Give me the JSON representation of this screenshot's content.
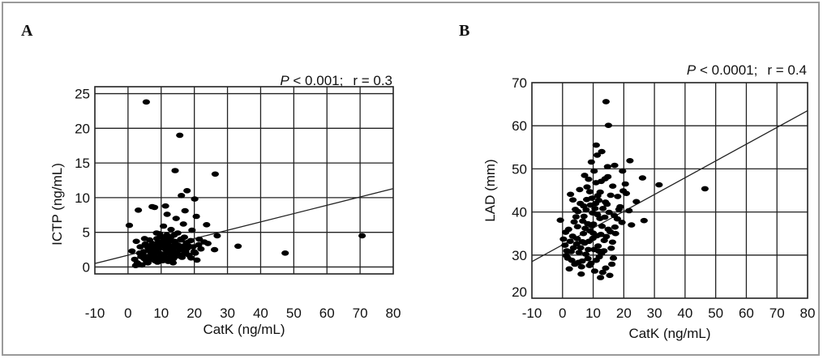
{
  "chart_data": [
    {
      "type": "scatter",
      "panel_label": "A",
      "stat_p_symbol": "P",
      "stat_p_value": " < 0.001;",
      "stat_r": "r = 0.3",
      "xlabel": "CatK (ng/mL)",
      "ylabel": "ICTP (ng/mL)",
      "xlim": [
        -10,
        80
      ],
      "ylim": [
        -1,
        26
      ],
      "xticks": [
        -10,
        0,
        10,
        20,
        30,
        40,
        50,
        60,
        70,
        80
      ],
      "yticks": [
        0,
        5,
        10,
        15,
        20,
        25
      ],
      "grid": true,
      "regression": {
        "x": [
          -10,
          80
        ],
        "y": [
          0.5,
          11.3
        ]
      },
      "points": [
        [
          5.5,
          23.8
        ],
        [
          15.6,
          19.0
        ],
        [
          14.2,
          13.9
        ],
        [
          26.3,
          13.4
        ],
        [
          17.8,
          11.0
        ],
        [
          16.1,
          10.3
        ],
        [
          20.1,
          9.8
        ],
        [
          11.3,
          8.8
        ],
        [
          7.3,
          8.7
        ],
        [
          8.0,
          8.6
        ],
        [
          3.1,
          8.2
        ],
        [
          17.2,
          8.1
        ],
        [
          11.8,
          7.6
        ],
        [
          14.5,
          7.0
        ],
        [
          20.6,
          7.3
        ],
        [
          16.7,
          6.2
        ],
        [
          23.7,
          6.1
        ],
        [
          0.4,
          6.0
        ],
        [
          10.7,
          5.9
        ],
        [
          13.0,
          5.4
        ],
        [
          8.6,
          4.9
        ],
        [
          19.3,
          5.3
        ],
        [
          26.9,
          4.5
        ],
        [
          70.6,
          4.5
        ],
        [
          15.0,
          4.9
        ],
        [
          9.8,
          4.4
        ],
        [
          5.0,
          4.1
        ],
        [
          21.5,
          4.0
        ],
        [
          12.3,
          4.0
        ],
        [
          2.5,
          3.7
        ],
        [
          17.6,
          3.5
        ],
        [
          7.4,
          3.4
        ],
        [
          11.1,
          3.3
        ],
        [
          14.1,
          3.7
        ],
        [
          24.1,
          3.4
        ],
        [
          3.7,
          2.9
        ],
        [
          9.6,
          2.9
        ],
        [
          19.6,
          2.9
        ],
        [
          6.2,
          2.7
        ],
        [
          13.2,
          2.6
        ],
        [
          16.5,
          2.6
        ],
        [
          22.0,
          2.6
        ],
        [
          33.2,
          3.0
        ],
        [
          26.1,
          2.5
        ],
        [
          1.2,
          2.3
        ],
        [
          8.3,
          2.1
        ],
        [
          12.0,
          2.1
        ],
        [
          47.4,
          2.0
        ],
        [
          4.4,
          1.8
        ],
        [
          18.4,
          1.7
        ],
        [
          10.3,
          1.6
        ],
        [
          14.8,
          1.6
        ],
        [
          6.9,
          1.4
        ],
        [
          2.0,
          1.1
        ],
        [
          11.6,
          1.1
        ],
        [
          20.8,
          1.0
        ],
        [
          5.6,
          0.8
        ],
        [
          8.9,
          0.7
        ],
        [
          3.2,
          0.4
        ],
        [
          13.6,
          0.6
        ],
        [
          7.8,
          2.4
        ],
        [
          9.2,
          3.6
        ],
        [
          12.7,
          3.0
        ],
        [
          15.3,
          3.1
        ],
        [
          10.8,
          4.2
        ],
        [
          4.7,
          2.2
        ],
        [
          17.0,
          4.3
        ],
        [
          6.5,
          3.9
        ],
        [
          11.4,
          2.5
        ],
        [
          13.9,
          4.6
        ],
        [
          9.9,
          1.9
        ],
        [
          16.0,
          3.9
        ],
        [
          7.1,
          1.9
        ],
        [
          12.5,
          1.3
        ],
        [
          8.2,
          3.0
        ],
        [
          18.9,
          3.8
        ],
        [
          5.9,
          2.9
        ],
        [
          14.6,
          2.1
        ],
        [
          10.1,
          2.8
        ],
        [
          3.9,
          1.5
        ],
        [
          19.9,
          2.2
        ],
        [
          6.7,
          1.1
        ],
        [
          11.9,
          3.5
        ],
        [
          15.7,
          2.5
        ],
        [
          9.4,
          1.2
        ],
        [
          13.4,
          2.0
        ],
        [
          7.6,
          2.8
        ],
        [
          16.9,
          1.9
        ],
        [
          2.8,
          0.6
        ],
        [
          21.3,
          3.2
        ],
        [
          8.7,
          4.1
        ],
        [
          12.9,
          4.3
        ],
        [
          10.5,
          0.9
        ],
        [
          4.2,
          0.3
        ],
        [
          17.9,
          2.7
        ],
        [
          14.3,
          3.3
        ],
        [
          6.0,
          0.6
        ],
        [
          23.0,
          3.6
        ],
        [
          11.0,
          3.9
        ],
        [
          9.0,
          2.5
        ],
        [
          5.2,
          3.3
        ],
        [
          13.1,
          1.7
        ],
        [
          16.3,
          1.4
        ],
        [
          7.9,
          1.6
        ],
        [
          10.9,
          1.4
        ],
        [
          12.2,
          2.9
        ],
        [
          18.1,
          3.1
        ],
        [
          3.5,
          2.0
        ],
        [
          15.2,
          1.8
        ],
        [
          8.5,
          1.4
        ],
        [
          20.3,
          2.0
        ],
        [
          6.4,
          2.3
        ],
        [
          11.7,
          4.6
        ],
        [
          9.7,
          3.3
        ],
        [
          14.0,
          2.8
        ],
        [
          4.9,
          1.2
        ],
        [
          12.6,
          3.7
        ],
        [
          17.4,
          2.2
        ],
        [
          7.2,
          3.1
        ],
        [
          10.2,
          3.6
        ],
        [
          13.7,
          1.2
        ],
        [
          5.7,
          1.5
        ],
        [
          16.6,
          3.0
        ],
        [
          8.1,
          0.9
        ],
        [
          19.0,
          1.3
        ],
        [
          11.3,
          1.9
        ],
        [
          2.3,
          0.2
        ],
        [
          9.5,
          4.8
        ],
        [
          15.9,
          4.0
        ],
        [
          12.1,
          0.8
        ]
      ]
    },
    {
      "type": "scatter",
      "panel_label": "B",
      "stat_p_symbol": "P",
      "stat_p_value": " < 0.0001;",
      "stat_r": "r = 0.4",
      "xlabel": "CatK (ng/mL)",
      "ylabel": "LAD (mm)",
      "xlim": [
        -10,
        80
      ],
      "ylim": [
        20,
        70
      ],
      "xticks": [
        -10,
        0,
        10,
        20,
        30,
        40,
        50,
        60,
        70,
        80
      ],
      "yticks": [
        20,
        30,
        40,
        50,
        60,
        70
      ],
      "grid": true,
      "regression": {
        "x": [
          -10,
          80
        ],
        "y": [
          28.5,
          63.5
        ]
      },
      "points": [
        [
          14.2,
          65.6
        ],
        [
          15.0,
          60.1
        ],
        [
          11.0,
          55.5
        ],
        [
          11.3,
          53.2
        ],
        [
          12.8,
          54.0
        ],
        [
          17.0,
          50.8
        ],
        [
          9.4,
          51.6
        ],
        [
          22.0,
          51.9
        ],
        [
          14.7,
          50.5
        ],
        [
          46.5,
          45.4
        ],
        [
          31.5,
          46.3
        ],
        [
          26.1,
          47.9
        ],
        [
          19.6,
          49.5
        ],
        [
          10.3,
          49.5
        ],
        [
          7.2,
          48.5
        ],
        [
          13.9,
          47.7
        ],
        [
          16.4,
          46.0
        ],
        [
          20.8,
          44.3
        ],
        [
          8.9,
          44.7
        ],
        [
          5.6,
          45.2
        ],
        [
          2.6,
          44.1
        ],
        [
          18.0,
          43.6
        ],
        [
          11.8,
          42.7
        ],
        [
          24.1,
          42.4
        ],
        [
          14.5,
          41.8
        ],
        [
          9.1,
          41.6
        ],
        [
          4.2,
          40.6
        ],
        [
          21.7,
          40.3
        ],
        [
          16.9,
          39.2
        ],
        [
          7.0,
          39.0
        ],
        [
          12.2,
          38.5
        ],
        [
          19.4,
          37.6
        ],
        [
          26.6,
          38.0
        ],
        [
          3.8,
          37.7
        ],
        [
          -0.7,
          38.1
        ],
        [
          9.5,
          36.8
        ],
        [
          14.9,
          36.0
        ],
        [
          1.0,
          35.3
        ],
        [
          6.8,
          35.0
        ],
        [
          11.2,
          34.5
        ],
        [
          17.3,
          35.0
        ],
        [
          22.5,
          37.0
        ],
        [
          4.8,
          33.8
        ],
        [
          8.6,
          33.2
        ],
        [
          13.6,
          33.4
        ],
        [
          0.8,
          32.3
        ],
        [
          5.9,
          31.7
        ],
        [
          10.3,
          31.3
        ],
        [
          15.9,
          31.6
        ],
        [
          2.8,
          30.8
        ],
        [
          7.6,
          30.2
        ],
        [
          12.7,
          30.4
        ],
        [
          1.7,
          29.3
        ],
        [
          6.4,
          28.6
        ],
        [
          11.0,
          28.8
        ],
        [
          16.6,
          29.3
        ],
        [
          4.0,
          27.9
        ],
        [
          8.8,
          27.6
        ],
        [
          14.1,
          27.0
        ],
        [
          2.2,
          26.8
        ],
        [
          10.5,
          26.3
        ],
        [
          6.1,
          25.6
        ],
        [
          15.4,
          25.3
        ],
        [
          12.4,
          24.8
        ],
        [
          9.8,
          39.8
        ],
        [
          13.2,
          40.8
        ],
        [
          7.9,
          42.9
        ],
        [
          18.8,
          41.2
        ],
        [
          5.0,
          40.1
        ],
        [
          10.9,
          46.8
        ],
        [
          15.7,
          43.9
        ],
        [
          8.2,
          37.3
        ],
        [
          3.3,
          34.4
        ],
        [
          12.9,
          36.7
        ],
        [
          6.6,
          37.9
        ],
        [
          17.9,
          38.4
        ],
        [
          9.9,
          33.9
        ],
        [
          4.6,
          32.6
        ],
        [
          14.3,
          34.3
        ],
        [
          11.6,
          32.1
        ],
        [
          1.4,
          31.0
        ],
        [
          7.2,
          32.8
        ],
        [
          16.3,
          33.0
        ],
        [
          3.0,
          28.8
        ],
        [
          12.0,
          29.6
        ],
        [
          8.3,
          29.2
        ],
        [
          5.4,
          30.6
        ],
        [
          10.1,
          37.2
        ],
        [
          13.8,
          38.8
        ],
        [
          0.3,
          33.7
        ],
        [
          19.8,
          44.9
        ],
        [
          6.9,
          41.4
        ],
        [
          11.5,
          43.8
        ],
        [
          9.0,
          35.6
        ],
        [
          15.2,
          39.9
        ],
        [
          2.0,
          36.0
        ],
        [
          8.0,
          45.8
        ],
        [
          12.6,
          47.1
        ],
        [
          4.4,
          38.9
        ],
        [
          17.1,
          36.5
        ],
        [
          10.6,
          40.8
        ],
        [
          14.0,
          42.3
        ],
        [
          7.4,
          36.2
        ],
        [
          5.8,
          42.0
        ],
        [
          3.6,
          31.7
        ],
        [
          11.9,
          30.9
        ],
        [
          9.3,
          28.1
        ],
        [
          13.1,
          26.0
        ],
        [
          6.2,
          27.3
        ],
        [
          16.1,
          27.9
        ],
        [
          20.5,
          46.5
        ],
        [
          8.5,
          47.6
        ],
        [
          12.3,
          44.6
        ],
        [
          4.9,
          36.6
        ],
        [
          15.6,
          35.4
        ],
        [
          1.2,
          29.9
        ],
        [
          10.8,
          42.0
        ],
        [
          7.7,
          40.5
        ],
        [
          14.8,
          48.2
        ],
        [
          18.4,
          40.6
        ],
        [
          3.4,
          42.8
        ],
        [
          9.6,
          43.2
        ],
        [
          11.4,
          39.4
        ],
        [
          6.5,
          33.1
        ],
        [
          13.5,
          31.0
        ],
        [
          2.5,
          33.2
        ],
        [
          10.0,
          35.1
        ],
        [
          8.4,
          31.3
        ],
        [
          5.2,
          28.3
        ],
        [
          12.5,
          34.8
        ]
      ]
    }
  ]
}
